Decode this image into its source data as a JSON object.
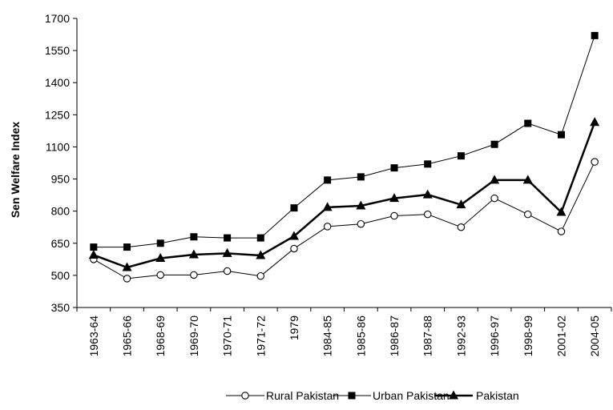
{
  "chart_data": {
    "type": "line",
    "title": "",
    "xlabel": "",
    "ylabel": "Sen Welfare Index",
    "ylim": [
      350,
      1700
    ],
    "yticks": [
      350,
      500,
      650,
      800,
      950,
      1100,
      1250,
      1400,
      1550,
      1700
    ],
    "categories": [
      "1963-64",
      "1965-66",
      "1968-69",
      "1969-70",
      "1970-71",
      "1971-72",
      "1979",
      "1984-85",
      "1985-86",
      "1986-87",
      "1987-88",
      "1992-93",
      "1996-97",
      "1998-99",
      "2001-02",
      "2004-05"
    ],
    "grid": false,
    "legend_position": "bottom",
    "series": [
      {
        "name": "Rural Pakistan",
        "marker": "circle-open",
        "color": "#000000",
        "values": [
          575,
          485,
          502,
          502,
          520,
          497,
          625,
          728,
          740,
          778,
          785,
          725,
          860,
          785,
          705,
          1030
        ]
      },
      {
        "name": "Urban Pakistan",
        "marker": "square",
        "color": "#000000",
        "values": [
          632,
          632,
          650,
          680,
          675,
          675,
          815,
          945,
          960,
          1002,
          1020,
          1058,
          1112,
          1210,
          1157,
          1620
        ]
      },
      {
        "name": "Pakistan",
        "marker": "triangle",
        "color": "#000000",
        "values": [
          595,
          537,
          580,
          597,
          603,
          593,
          683,
          818,
          825,
          860,
          877,
          830,
          945,
          945,
          795,
          1215
        ]
      }
    ]
  }
}
